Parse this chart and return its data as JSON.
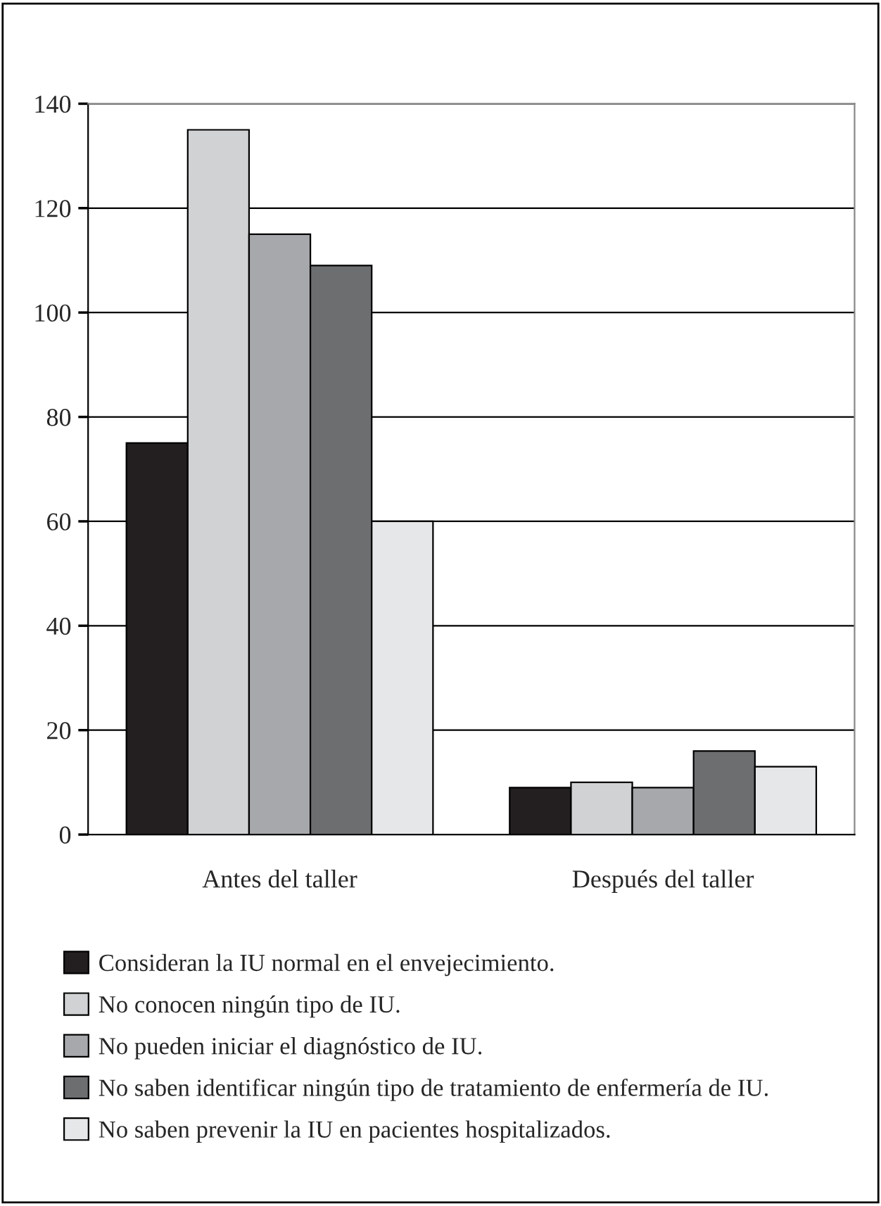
{
  "chart_data": {
    "type": "bar",
    "categories": [
      "Antes del taller",
      "Después del taller"
    ],
    "series": [
      {
        "name": "Consideran la IU normal en el envejecimiento.",
        "color": "#231f20",
        "values": [
          75,
          9
        ]
      },
      {
        "name": "No conocen ningún tipo de IU.",
        "color": "#d1d2d4",
        "values": [
          135,
          10
        ]
      },
      {
        "name": "No pueden iniciar el diagnóstico de IU.",
        "color": "#a7a8ab",
        "values": [
          115,
          9
        ]
      },
      {
        "name": "No saben identificar ningún tipo de tratamiento de enfermería de IU.",
        "color": "#6d6e70",
        "values": [
          109,
          16
        ]
      },
      {
        "name": "No saben prevenir la IU en pacientes hospitalizados.",
        "color": "#e6e7e8",
        "values": [
          60,
          13
        ]
      }
    ],
    "ylim": [
      0,
      140
    ],
    "yticks": [
      0,
      20,
      40,
      60,
      80,
      100,
      120,
      140
    ],
    "grid": "y",
    "legend": "bottom"
  }
}
